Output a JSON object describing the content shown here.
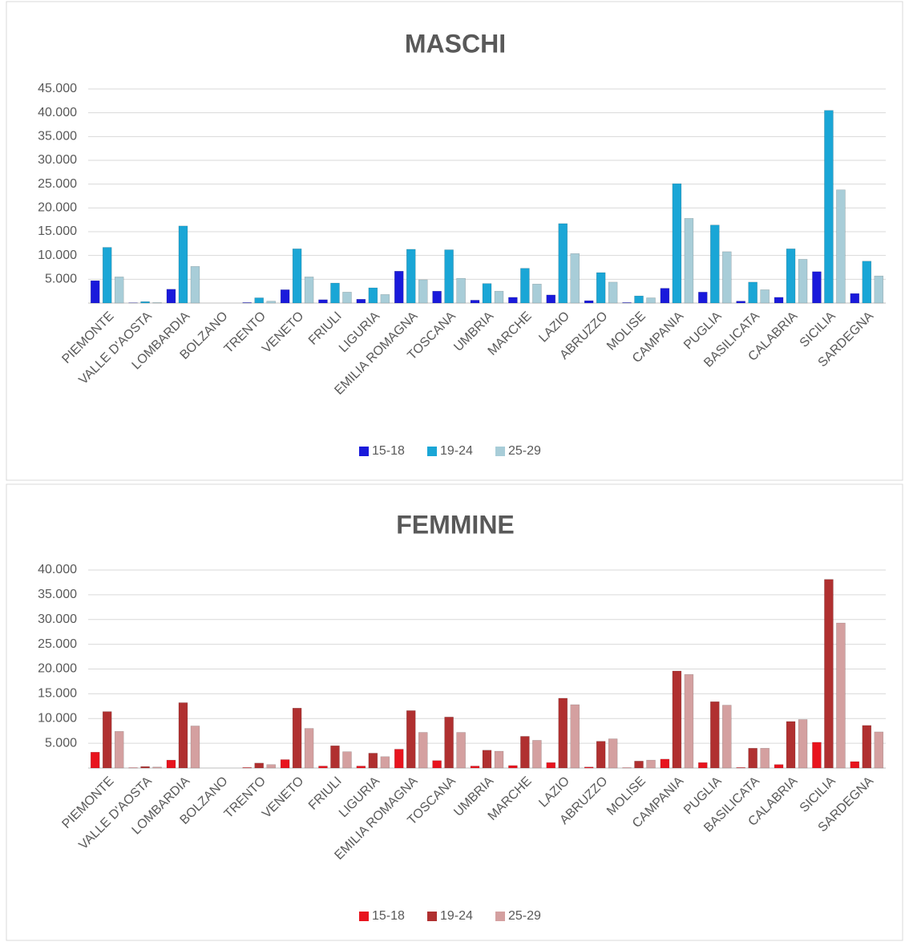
{
  "chart_data": [
    {
      "type": "bar",
      "title": "MASCHI",
      "categories": [
        "PIEMONTE",
        "VALLE D'AOSTA",
        "LOMBARDIA",
        "BOLZANO",
        "TRENTO",
        "VENETO",
        "FRIULI",
        "LIGURIA",
        "EMILIA ROMAGNA",
        "TOSCANA",
        "UMBRIA",
        "MARCHE",
        "LAZIO",
        "ABRUZZO",
        "MOLISE",
        "CAMPANIA",
        "PUGLIA",
        "BASILICATA",
        "CALABRIA",
        "SICILIA",
        "SARDEGNA"
      ],
      "series": [
        {
          "name": "15-18",
          "color": "#1a1adb",
          "values": [
            4700,
            50,
            2900,
            0,
            100,
            2800,
            700,
            800,
            6700,
            2500,
            600,
            1200,
            1700,
            500,
            100,
            3100,
            2300,
            400,
            1200,
            6600,
            2000
          ]
        },
        {
          "name": "19-24",
          "color": "#1aa6d6",
          "values": [
            11700,
            300,
            16200,
            0,
            1100,
            11400,
            4200,
            3200,
            11300,
            11200,
            4100,
            7300,
            16700,
            6400,
            1500,
            25100,
            16400,
            4400,
            11400,
            40500,
            8800
          ]
        },
        {
          "name": "25-29",
          "color": "#a8cdd8",
          "values": [
            5500,
            100,
            7700,
            0,
            400,
            5500,
            2300,
            1800,
            4900,
            5200,
            2500,
            4000,
            10400,
            4400,
            1100,
            17800,
            10800,
            2800,
            9200,
            23800,
            5700
          ]
        }
      ],
      "ylim": [
        0,
        45000
      ],
      "yticks": [
        {
          "value": 5000,
          "label": "5.000"
        },
        {
          "value": 10000,
          "label": "10.000"
        },
        {
          "value": 15000,
          "label": "15.000"
        },
        {
          "value": 20000,
          "label": "20.000"
        },
        {
          "value": 25000,
          "label": "25.000"
        },
        {
          "value": 30000,
          "label": "30.000"
        },
        {
          "value": 35000,
          "label": "35.000"
        },
        {
          "value": 40000,
          "label": "40.000"
        },
        {
          "value": 45000,
          "label": "45.000"
        }
      ],
      "grid": true,
      "legend": "bottom"
    },
    {
      "type": "bar",
      "title": "FEMMINE",
      "categories": [
        "PIEMONTE",
        "VALLE D'AOSTA",
        "LOMBARDIA",
        "BOLZANO",
        "TRENTO",
        "VENETO",
        "FRIULI",
        "LIGURIA",
        "EMILIA ROMAGNA",
        "TOSCANA",
        "UMBRIA",
        "MARCHE",
        "LAZIO",
        "ABRUZZO",
        "MOLISE",
        "CAMPANIA",
        "PUGLIA",
        "BASILICATA",
        "CALABRIA",
        "SICILIA",
        "SARDEGNA"
      ],
      "series": [
        {
          "name": "15-18",
          "color": "#e8141e",
          "values": [
            3200,
            50,
            1600,
            0,
            100,
            1700,
            400,
            400,
            3800,
            1500,
            400,
            500,
            1100,
            200,
            50,
            1800,
            1100,
            100,
            700,
            5200,
            1300
          ]
        },
        {
          "name": "19-24",
          "color": "#b03030",
          "values": [
            11400,
            300,
            13200,
            0,
            1000,
            12100,
            4500,
            3000,
            11600,
            10300,
            3600,
            6400,
            14100,
            5400,
            1400,
            19600,
            13400,
            4000,
            9400,
            38100,
            8600
          ]
        },
        {
          "name": "25-29",
          "color": "#d4a0a0",
          "values": [
            7400,
            200,
            8500,
            0,
            700,
            8000,
            3300,
            2300,
            7200,
            7200,
            3400,
            5600,
            12800,
            5900,
            1600,
            18900,
            12700,
            4000,
            9800,
            29300,
            7300
          ]
        }
      ],
      "ylim": [
        0,
        40000
      ],
      "yticks": [
        {
          "value": 5000,
          "label": "5.000"
        },
        {
          "value": 10000,
          "label": "10.000"
        },
        {
          "value": 15000,
          "label": "15.000"
        },
        {
          "value": 20000,
          "label": "20.000"
        },
        {
          "value": 25000,
          "label": "25.000"
        },
        {
          "value": 30000,
          "label": "30.000"
        },
        {
          "value": 35000,
          "label": "35.000"
        },
        {
          "value": 40000,
          "label": "40.000"
        }
      ],
      "grid": true,
      "legend": "bottom"
    }
  ]
}
